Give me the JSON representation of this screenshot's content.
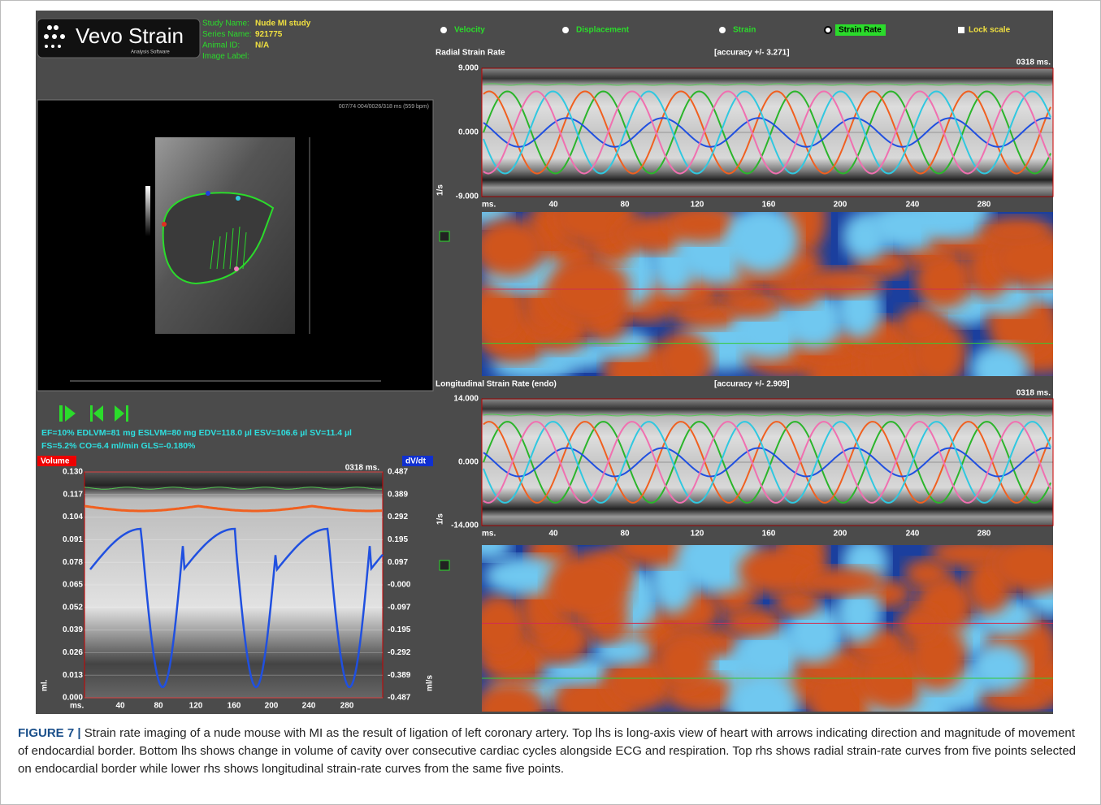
{
  "app": {
    "logo": "Vevo Strain",
    "logo_sub": "Analysis Software",
    "study": [
      {
        "label": "Study Name:",
        "value": "Nude MI study"
      },
      {
        "label": "Series Name:",
        "value": "921775"
      },
      {
        "label": "Animal ID:",
        "value": "N/A"
      },
      {
        "label": "Image Label:"
      }
    ],
    "modes": [
      "Velocity",
      "Displacement",
      "Strain",
      "Strain Rate"
    ],
    "selected_mode": 3,
    "lock_scale": "Lock scale",
    "image_header": "007/74  004/0026/318 ms (559 bpm)",
    "stats": [
      "EF=10%   EDLVM=81 mg   ESLVM=80 mg   EDV=118.0 µl   ESV=106.6 µl   SV=11.4 µl",
      "FS=5.2%   CO=6.4 ml/min   GLS=-0.180%"
    ],
    "volume": {
      "left_label": "Volume",
      "right_label": "dV/dt",
      "time": "0318 ms.",
      "left_ticks": [
        "0.130",
        "0.117",
        "0.104",
        "0.091",
        "0.078",
        "0.065",
        "0.052",
        "0.039",
        "0.026",
        "0.013",
        "0.000"
      ],
      "right_ticks": [
        "0.487",
        "0.389",
        "0.292",
        "0.195",
        "0.097",
        "-0.000",
        "-0.097",
        "-0.195",
        "-0.292",
        "-0.389",
        "-0.487"
      ],
      "x_ticks": [
        "ms.",
        "40",
        "80",
        "120",
        "160",
        "200",
        "240",
        "280"
      ],
      "left_unit": "ml.",
      "right_unit": "ml/s"
    },
    "radial": {
      "title": "Radial Strain Rate",
      "accuracy": "[accuracy +/- 3.271]",
      "time": "0318 ms.",
      "y_ticks": [
        "9.000",
        "0.000",
        "-9.000"
      ],
      "unit": "1/s",
      "x_ticks": [
        "ms.",
        "40",
        "80",
        "120",
        "160",
        "200",
        "240",
        "280"
      ]
    },
    "longitudinal": {
      "title": "Longitudinal Strain Rate (endo)",
      "accuracy": "[accuracy +/- 2.909]",
      "time": "0318 ms.",
      "y_ticks": [
        "14.000",
        "0.000",
        "-14.000"
      ],
      "unit": "1/s",
      "x_ticks": [
        "ms.",
        "40",
        "80",
        "120",
        "160",
        "200",
        "240",
        "280"
      ]
    }
  },
  "caption": {
    "label": "FIGURE 7 |",
    "text": "Strain rate imaging of a nude mouse with MI as the result of ligation of left coronary artery. Top lhs is long-axis view of heart with arrows indicating direction and magnitude of movement of endocardial border. Bottom lhs shows change in volume of cavity over consecutive cardiac cycles alongside ECG and respiration. Top rhs shows radial strain-rate curves from five points selected on endocardial border while lower rhs shows longitudinal strain-rate curves from the same five points."
  }
}
